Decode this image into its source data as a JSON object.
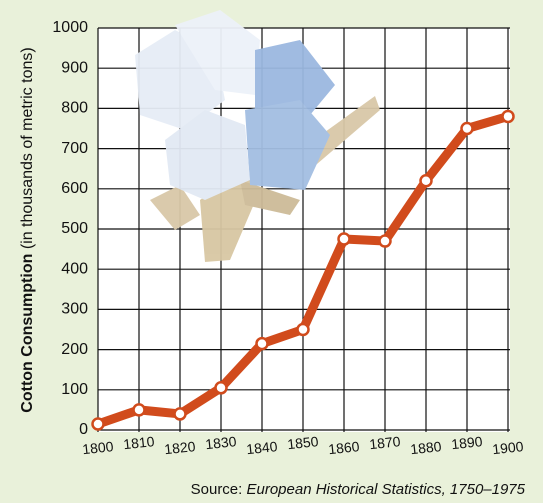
{
  "chart_data": {
    "type": "line",
    "ylabel": "Cotton Consumption",
    "ylabel_unit": "(in thousands of metric tons)",
    "source": {
      "label": "Source:",
      "text": "European Historical Statistics, 1750–1975"
    },
    "x": [
      1800,
      1810,
      1820,
      1830,
      1840,
      1850,
      1860,
      1870,
      1880,
      1890,
      1900
    ],
    "series": [
      {
        "color": "#d14b1c",
        "values": [
          15,
          50,
          40,
          105,
          215,
          250,
          475,
          470,
          620,
          750,
          780
        ]
      }
    ],
    "xlim": [
      1800,
      1900
    ],
    "xticks": [
      1800,
      1810,
      1820,
      1830,
      1840,
      1850,
      1860,
      1870,
      1880,
      1890,
      1900
    ],
    "ylim": [
      0,
      1000
    ],
    "yticks": [
      0,
      100,
      200,
      300,
      400,
      500,
      600,
      700,
      800,
      900,
      1000
    ],
    "grid": true
  }
}
